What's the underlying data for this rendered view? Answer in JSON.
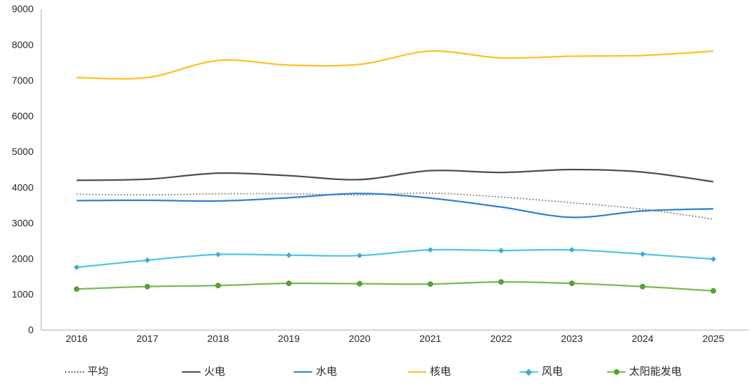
{
  "chart_data": {
    "type": "line",
    "title": "",
    "xlabel": "",
    "ylabel": "",
    "x_categories": [
      "2016",
      "2017",
      "2018",
      "2019",
      "2020",
      "2021",
      "2022",
      "2023",
      "2024",
      "2025"
    ],
    "y_axis": {
      "min": 0,
      "max": 9000,
      "step": 1000,
      "ticks": [
        "0",
        "1000",
        "2000",
        "3000",
        "4000",
        "5000",
        "6000",
        "7000",
        "8000",
        "9000"
      ]
    },
    "grid": false,
    "legend_position": "bottom",
    "background_color": "#ffffff",
    "axis_line_color": "#bdbdbd",
    "tick_text_color": "#262626",
    "series": [
      {
        "key": "average",
        "name": "平均",
        "color": "#6e6e6e",
        "line_style": "dotted",
        "marker": "none",
        "values": [
          3810,
          3790,
          3820,
          3820,
          3790,
          3840,
          3730,
          3570,
          3390,
          3110
        ]
      },
      {
        "key": "thermal",
        "name": "火电",
        "color": "#4d4d4d",
        "line_style": "solid",
        "marker": "none",
        "values": [
          4200,
          4230,
          4400,
          4330,
          4220,
          4470,
          4420,
          4500,
          4430,
          4160
        ]
      },
      {
        "key": "hydro",
        "name": "水电",
        "color": "#2e7fd2",
        "line_style": "solid",
        "marker": "none",
        "values": [
          3630,
          3640,
          3620,
          3710,
          3830,
          3700,
          3450,
          3160,
          3340,
          3400
        ]
      },
      {
        "key": "nuclear",
        "name": "核电",
        "color": "#ffc01e",
        "line_style": "solid",
        "marker": "none",
        "values": [
          7080,
          7080,
          7560,
          7430,
          7450,
          7820,
          7630,
          7680,
          7700,
          7820
        ]
      },
      {
        "key": "wind",
        "name": "风电",
        "color": "#4ec6e0",
        "marker_color": "#3fa9d6",
        "line_style": "solid",
        "marker": "diamond",
        "values": [
          1760,
          1960,
          2120,
          2100,
          2090,
          2250,
          2230,
          2250,
          2130,
          1990
        ]
      },
      {
        "key": "solar",
        "name": "太阳能发电",
        "color": "#76bb52",
        "marker_color": "#58a032",
        "line_style": "solid",
        "marker": "circle",
        "values": [
          1150,
          1220,
          1250,
          1310,
          1300,
          1290,
          1350,
          1310,
          1220,
          1100
        ]
      }
    ]
  }
}
